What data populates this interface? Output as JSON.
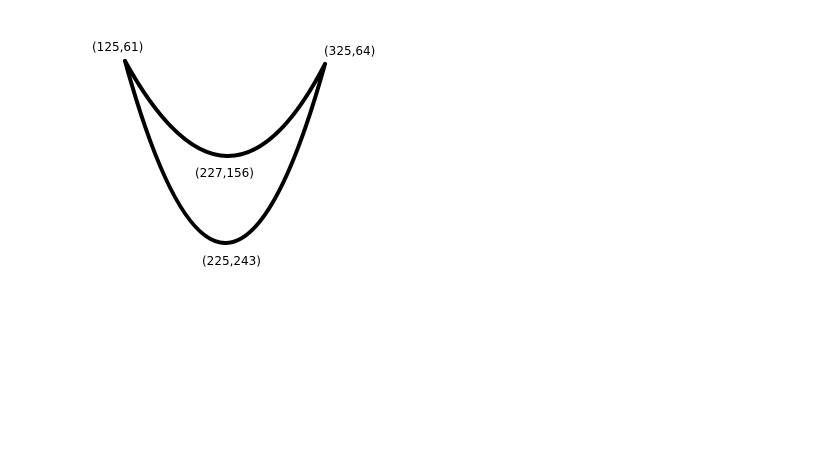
{
  "colors": {
    "background": "#ffffff",
    "stroke": "#000000",
    "text": "#000000"
  },
  "labels": {
    "left_endpoint": "(125,61)",
    "right_endpoint": "(325,64)",
    "inner_vertex": "(227,156)",
    "outer_vertex": "(225,243)"
  },
  "curves": [
    {
      "name": "inner-curve",
      "start": [
        125,
        61
      ],
      "vertex": [
        227,
        156
      ],
      "end": [
        325,
        64
      ]
    },
    {
      "name": "outer-curve",
      "start": [
        125,
        61
      ],
      "vertex": [
        225,
        243
      ],
      "end": [
        325,
        64
      ]
    }
  ]
}
